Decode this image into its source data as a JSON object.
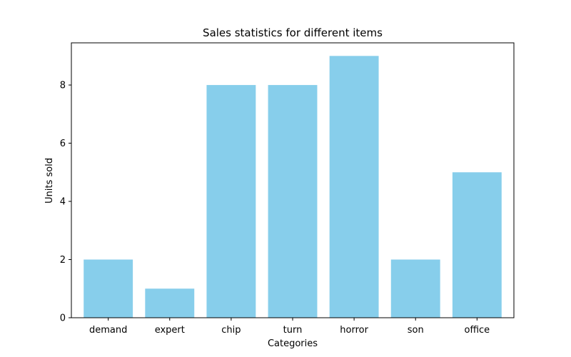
{
  "chart_data": {
    "type": "bar",
    "title": "Sales statistics for different items",
    "xlabel": "Categories",
    "ylabel": "Units sold",
    "categories": [
      "demand",
      "expert",
      "chip",
      "turn",
      "horror",
      "son",
      "office"
    ],
    "values": [
      2,
      1,
      8,
      8,
      9,
      2,
      5
    ],
    "ylim": [
      0,
      9.45
    ],
    "yticks": [
      0,
      2,
      4,
      6,
      8
    ],
    "bar_color": "#87CEEB",
    "grid": false,
    "legend": "none"
  }
}
